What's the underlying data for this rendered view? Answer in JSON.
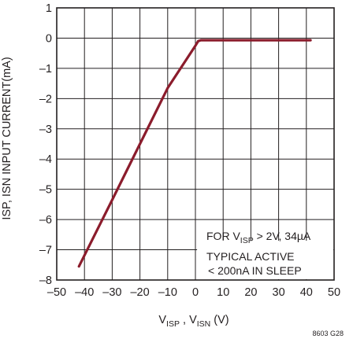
{
  "chart_data": {
    "type": "line",
    "xlabel": {
      "main": "V",
      "sub1": "ISP",
      "mid": " , V",
      "sub2": "ISN",
      "unit": " (V)"
    },
    "ylabel": "ISP, ISN INPUT CURRENT(mA)",
    "xlim": [
      -50,
      50
    ],
    "ylim": [
      -8,
      1
    ],
    "x_ticks": [
      "–50",
      "–40",
      "–30",
      "–20",
      "–10",
      "0",
      "10",
      "20",
      "30",
      "40",
      "50"
    ],
    "y_ticks": [
      "1",
      "0",
      "–1",
      "–2",
      "–3",
      "–4",
      "–5",
      "–6",
      "–7",
      "–8"
    ],
    "grid": true,
    "series": [
      {
        "color": "#8b1c2c",
        "x": [
          -42,
          -30,
          -20,
          -10,
          0,
          1,
          2,
          41.5
        ],
        "y": [
          -7.55,
          -5.35,
          -3.5,
          -1.65,
          -0.25,
          -0.1,
          -0.07,
          -0.07
        ]
      }
    ],
    "annotation": {
      "line1_pre": "FOR V",
      "line1_sub": "ISP",
      "line1_post": " > 2V, 34µA",
      "line2": "TYPICAL ACTIVE",
      "line3": "< 200nA IN SLEEP"
    },
    "figure_id": "8603 G28"
  }
}
